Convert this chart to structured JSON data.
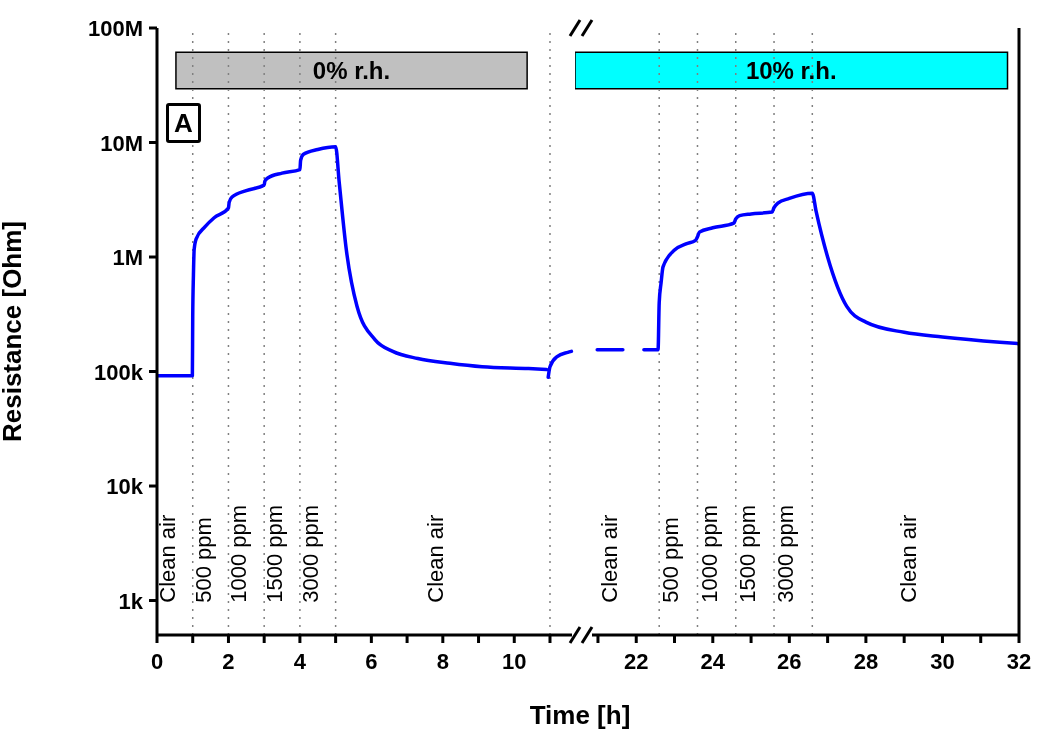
{
  "chart_data": [
    {
      "type": "line",
      "xlabel": "Time [h]",
      "ylabel": "Resistance [Ohm]",
      "log": "y",
      "marker": "none",
      "line_style": "solid",
      "xlim": [
        0,
        11.7
      ],
      "xticks": [
        0,
        {
          "value": 1,
          "label": null
        },
        2,
        {
          "value": 3,
          "label": null
        },
        4,
        {
          "value": 5,
          "label": null
        },
        6,
        {
          "value": 7,
          "label": null
        },
        8,
        {
          "value": 9,
          "label": null
        },
        10,
        {
          "value": 11,
          "label": null
        }
      ],
      "ylim": [
        500,
        100000000
      ],
      "yticks": [
        {
          "value": 1000,
          "label": "1k"
        },
        {
          "value": 10000,
          "label": "10k"
        },
        {
          "value": 100000,
          "label": "100k"
        },
        {
          "value": 1000000,
          "label": "1M"
        },
        {
          "value": 10000000,
          "label": "10M"
        },
        {
          "value": 100000000,
          "label": "100M"
        }
      ],
      "series": [
        {
          "color": "#0000ff",
          "x": [
            0,
            0.5,
            0.99,
            1.0,
            1.02,
            1.04,
            1.1,
            1.34,
            1.6,
            2.0,
            2.02,
            2.1,
            2.5,
            3.0,
            3.02,
            3.1,
            3.5,
            4.0,
            4.02,
            4.1,
            4.5,
            5.0,
            5.1,
            5.3,
            5.6,
            6.1,
            6.6,
            7.3,
            8.2,
            9.1,
            10.4,
            10.9,
            10.92,
            10.95,
            11.0,
            11.2,
            11.5,
            11.6
          ],
          "values": [
            92000,
            92000,
            92000,
            300000,
            700000,
            1160000,
            1450000,
            1830000,
            2200000,
            2680000,
            3000000,
            3340000,
            3800000,
            4250000,
            4600000,
            4900000,
            5400000,
            5800000,
            7000000,
            7900000,
            8700000,
            9200000,
            4500000,
            1150000,
            370000,
            190000,
            150000,
            130000,
            118000,
            110000,
            106000,
            104000,
            null,
            89000,
            110000,
            135000,
            147000,
            150000
          ]
        }
      ],
      "bands": [
        {
          "axis": "x",
          "from": 0.53,
          "to": 10.36,
          "label": "0% r.h.",
          "color": "#c0c0c0"
        }
      ],
      "ref_lines": [
        {
          "axis": "x",
          "value": 1,
          "color": "#808080",
          "line_style": "dotted"
        },
        {
          "axis": "x",
          "value": 2,
          "color": "#808080",
          "line_style": "dotted"
        },
        {
          "axis": "x",
          "value": 3,
          "color": "#808080",
          "line_style": "dotted"
        },
        {
          "axis": "x",
          "value": 4,
          "color": "#808080",
          "line_style": "dotted"
        },
        {
          "axis": "x",
          "value": 5,
          "color": "#808080",
          "line_style": "dotted"
        },
        {
          "axis": "x",
          "value": 11,
          "color": "#808080",
          "line_style": "dotted"
        }
      ],
      "title": "A",
      "annotations": [
        "Clean air",
        "500 ppm",
        "1000 ppm",
        "1500 ppm",
        "3000 ppm",
        "Clean air"
      ]
    },
    {
      "type": "line",
      "log": "y",
      "marker": "none",
      "line_style": "solid",
      "tick_labels": "x",
      "xlim": [
        20.4,
        32
      ],
      "xticks": [
        {
          "value": 21,
          "label": null
        },
        22,
        {
          "value": 23,
          "label": null
        },
        24,
        {
          "value": 25,
          "label": null
        },
        26,
        {
          "value": 27,
          "label": null
        },
        28,
        {
          "value": 29,
          "label": null
        },
        30,
        {
          "value": 31,
          "label": null
        },
        32
      ],
      "ylim": [
        500,
        100000000
      ],
      "series": [
        {
          "color": "#0000ff",
          "x": [
            20.98,
            21.3,
            21.65,
            21.7,
            22.2,
            22.57,
            22.6,
            22.65,
            22.7,
            23.0,
            23.3,
            23.55,
            23.6,
            23.65,
            24.0,
            24.55,
            24.6,
            24.7,
            25.0,
            25.55,
            25.6,
            25.7,
            26.0,
            26.6,
            26.7,
            27.0,
            27.5,
            28.0,
            29.0,
            30.0,
            31.5,
            32.0
          ],
          "values": [
            155000,
            155000,
            155000,
            null,
            155000,
            155000,
            400000,
            600000,
            820000,
            1150000,
            1300000,
            1400000,
            1500000,
            1650000,
            1800000,
            1980000,
            2150000,
            2300000,
            2380000,
            2470000,
            2700000,
            2960000,
            3250000,
            3600000,
            2500000,
            1000000,
            370000,
            270000,
            220000,
            200000,
            180000,
            175000
          ]
        }
      ],
      "bands": [
        {
          "axis": "x",
          "from": 20.4,
          "to": 31.7,
          "label": "10% r.h.",
          "color": "#00ffff"
        }
      ],
      "ref_lines": [
        {
          "axis": "x",
          "value": 22.6,
          "color": "#808080",
          "line_style": "dotted"
        },
        {
          "axis": "x",
          "value": 23.6,
          "color": "#808080",
          "line_style": "dotted"
        },
        {
          "axis": "x",
          "value": 24.6,
          "color": "#808080",
          "line_style": "dotted"
        },
        {
          "axis": "x",
          "value": 25.6,
          "color": "#808080",
          "line_style": "dotted"
        },
        {
          "axis": "x",
          "value": 26.6,
          "color": "#808080",
          "line_style": "dotted"
        }
      ],
      "annotations": [
        "Clean air",
        "500 ppm",
        "1000 ppm",
        "1500 ppm",
        "3000 ppm",
        "Clean air"
      ]
    }
  ]
}
